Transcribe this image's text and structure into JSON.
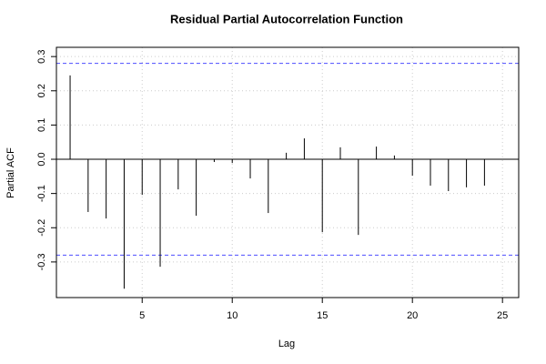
{
  "chart_data": {
    "type": "pacf",
    "title": "Residual Partial Autocorrelation Function",
    "x_label": "Lag",
    "y_label": "Partial ACF",
    "x": [
      1,
      2,
      3,
      4,
      5,
      6,
      7,
      8,
      9,
      10,
      11,
      12,
      13,
      14,
      15,
      16,
      17,
      18,
      19,
      20,
      21,
      22,
      23,
      24
    ],
    "values": [
      0.245,
      -0.154,
      -0.173,
      -0.378,
      -0.104,
      -0.314,
      -0.088,
      -0.165,
      -0.008,
      -0.011,
      -0.056,
      -0.157,
      0.019,
      0.061,
      -0.213,
      0.035,
      -0.221,
      0.037,
      0.011,
      -0.048,
      -0.077,
      -0.093,
      -0.082,
      -0.077
    ],
    "color": "#000000",
    "xlim": [
      0.24,
      25.9
    ],
    "xticks": [
      5,
      10,
      15,
      20,
      25
    ],
    "ylim": [
      -0.404,
      0.327
    ],
    "yticks": [
      -0.3,
      -0.2,
      -0.1,
      {
        "value": 0,
        "label": "0.0"
      },
      0.1,
      0.2,
      0.3
    ],
    "grid": true,
    "zero_line": 0,
    "ci_lines": [
      0.28,
      -0.28
    ],
    "ci_color": "#4d4dff"
  }
}
